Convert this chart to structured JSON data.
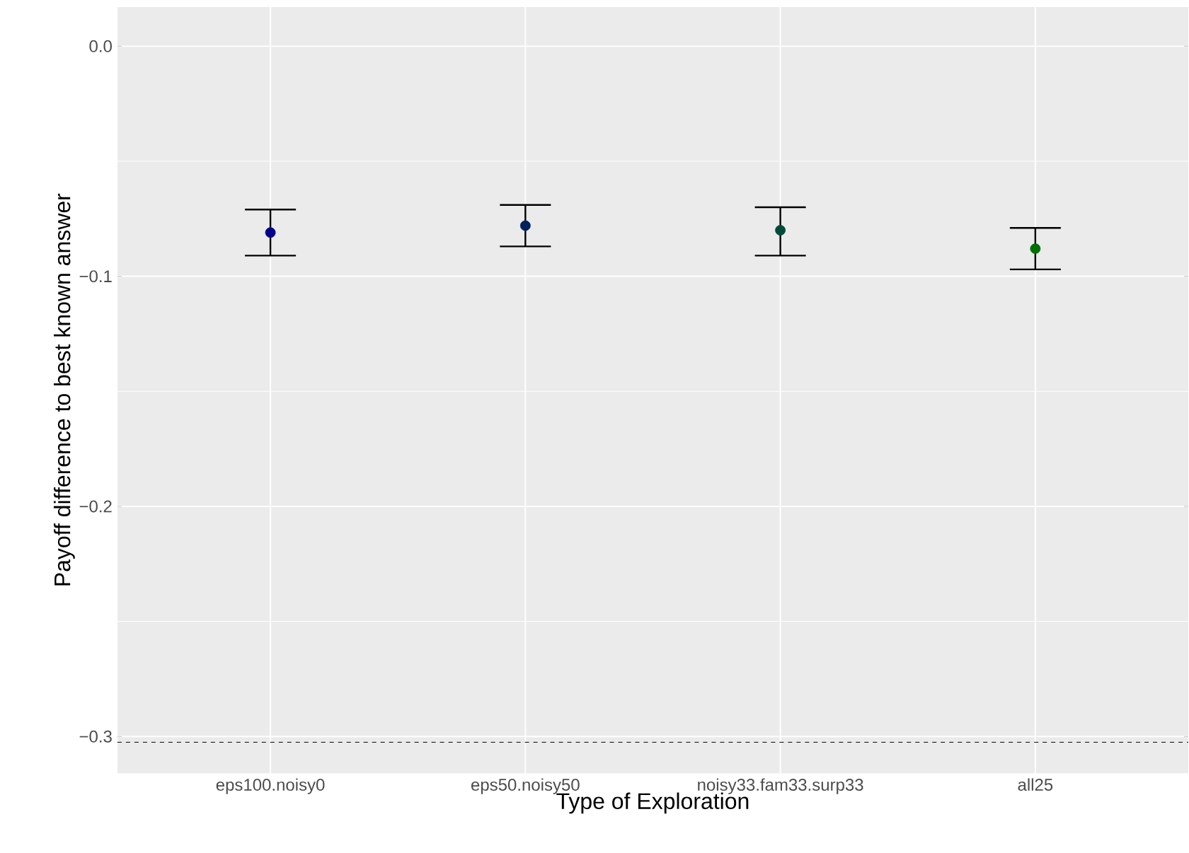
{
  "chart_data": {
    "type": "scatter",
    "xlabel": "Type of Exploration",
    "ylabel": "Payoff difference to best known answer",
    "categories": [
      "eps100.noisy0",
      "eps50.noisy50",
      "noisy33.fam33.surp33",
      "all25"
    ],
    "values": [
      -0.081,
      -0.078,
      -0.08,
      -0.088
    ],
    "colors": [
      "#00008b",
      "#00205e",
      "#004a3a",
      "#007000"
    ],
    "errors": [
      [
        -0.091,
        -0.071
      ],
      [
        -0.087,
        -0.069
      ],
      [
        -0.091,
        -0.07
      ],
      [
        -0.097,
        -0.079
      ]
    ],
    "ylim": [
      -0.316,
      0.017
    ],
    "yticks": [
      {
        "value": -0.3,
        "label": "−0.3"
      },
      {
        "value": -0.2,
        "label": "−0.2"
      },
      {
        "value": -0.1,
        "label": "−0.1"
      },
      {
        "value": 0.0,
        "label": "0.0"
      }
    ],
    "ref_lines": [
      {
        "axis": "y",
        "value": -0.3025,
        "line_style": "dashed",
        "color": "#000000"
      }
    ],
    "grid": true,
    "marker": "circle"
  }
}
